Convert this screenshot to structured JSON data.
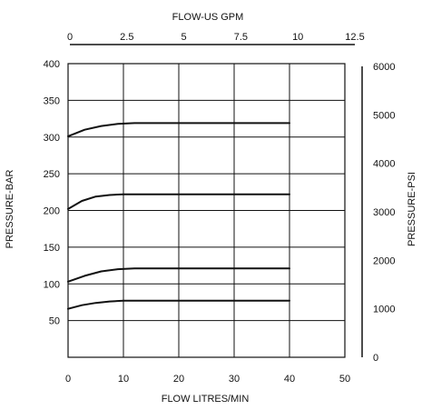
{
  "chart_data": {
    "type": "line",
    "title": "FLOW-US GPM",
    "xlabel": "FLOW LITRES/MIN",
    "ylabel": "PRESSURE-BAR",
    "y2label": "PRESSURE-PSI",
    "xlim": [
      0,
      50
    ],
    "ylim": [
      0,
      400
    ],
    "x2lim": [
      0,
      12.5
    ],
    "y2lim": [
      0,
      6000
    ],
    "grid": true,
    "x_ticks": [
      "0",
      "10",
      "20",
      "30",
      "40",
      "50"
    ],
    "x_tick_values": [
      0,
      10,
      20,
      30,
      40,
      50
    ],
    "y_ticks": [
      "50",
      "100",
      "150",
      "200",
      "250",
      "300",
      "350",
      "400"
    ],
    "y_tick_values": [
      50,
      100,
      150,
      200,
      250,
      300,
      350,
      400
    ],
    "x2_ticks": [
      "0",
      "2.5",
      "5",
      "7.5",
      "10",
      "12.5"
    ],
    "x2_tick_values": [
      0,
      2.5,
      5,
      7.5,
      10,
      12.5
    ],
    "y2_ticks": [
      "0",
      "1000",
      "2000",
      "3000",
      "4000",
      "5000",
      "6000"
    ],
    "y2_tick_values": [
      0,
      1000,
      2000,
      3000,
      4000,
      5000,
      6000
    ],
    "series": [
      {
        "x": [
          0,
          3,
          6,
          9,
          12,
          40
        ],
        "y": [
          301,
          310,
          315,
          318,
          319,
          319
        ]
      },
      {
        "x": [
          0,
          2.5,
          5,
          7.5,
          10,
          40
        ],
        "y": [
          202,
          213,
          219,
          221,
          222,
          222
        ]
      },
      {
        "x": [
          0,
          3,
          6,
          9,
          12,
          40
        ],
        "y": [
          103,
          111,
          117,
          120,
          121,
          121
        ]
      },
      {
        "x": [
          0,
          2.5,
          5,
          7.5,
          10,
          40
        ],
        "y": [
          66,
          71,
          74,
          76,
          77,
          77
        ]
      }
    ]
  }
}
